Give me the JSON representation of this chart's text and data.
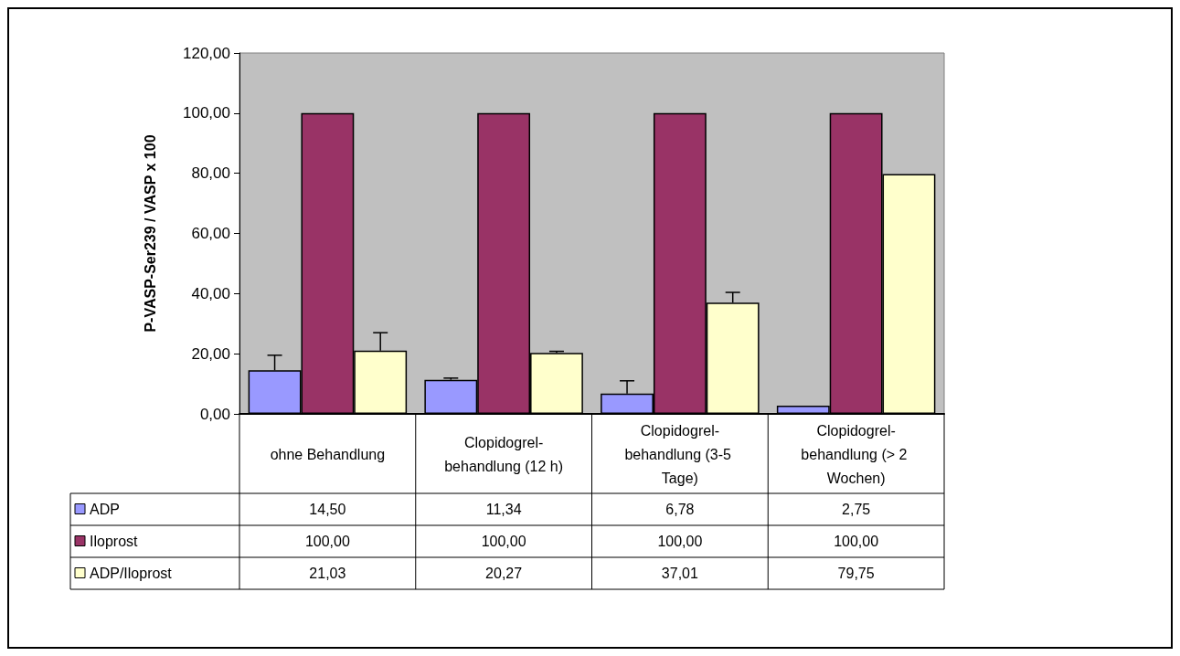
{
  "chart_data": {
    "type": "bar",
    "ylabel": "P-VASP-Ser239 / VASP x 100",
    "categories": [
      "ohne Behandlung",
      "Clopidogrel-behandlung (12 h)",
      "Clopidogrel-behandlung (3-5 Tage)",
      "Clopidogrel-behandlung (> 2 Wochen)"
    ],
    "series": [
      {
        "name": "ADP",
        "color": "#9999ff",
        "values": [
          14.5,
          11.34,
          6.78,
          2.75
        ],
        "value_labels": [
          "14,50",
          "11,34",
          "6,78",
          "2,75"
        ],
        "errors": [
          [
            14.5,
            19.5
          ],
          [
            11.34,
            11.9
          ],
          [
            6.78,
            11
          ],
          null
        ]
      },
      {
        "name": "Iloprost",
        "color": "#993366",
        "values": [
          100,
          100,
          100,
          100
        ],
        "value_labels": [
          "100,00",
          "100,00",
          "100,00",
          "100,00"
        ]
      },
      {
        "name": "ADP/Iloprost",
        "color": "#ffffcc",
        "values": [
          21.03,
          20.27,
          37.01,
          79.75
        ],
        "value_labels": [
          "21,03",
          "20,27",
          "37,01",
          "79,75"
        ],
        "errors": [
          [
            21.03,
            27
          ],
          [
            20.27,
            20.8
          ],
          [
            37.01,
            40.4
          ],
          null
        ]
      }
    ],
    "ylim": [
      0,
      120
    ],
    "yticks": [
      {
        "value": 0,
        "label": "0,00"
      },
      {
        "value": 20,
        "label": "20,00"
      },
      {
        "value": 40,
        "label": "40,00"
      },
      {
        "value": 60,
        "label": "60,00"
      },
      {
        "value": 80,
        "label": "80,00"
      },
      {
        "value": 100,
        "label": "100,00"
      },
      {
        "value": 120,
        "label": "120,00"
      }
    ],
    "grid": false,
    "legend": "bottom left"
  }
}
